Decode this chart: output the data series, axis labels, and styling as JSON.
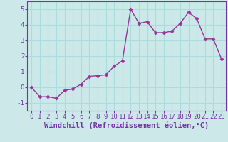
{
  "xlabel": "Windchill (Refroidissement éolien,°C)",
  "x": [
    0,
    1,
    2,
    3,
    4,
    5,
    6,
    7,
    8,
    9,
    10,
    11,
    12,
    13,
    14,
    15,
    16,
    17,
    18,
    19,
    20,
    21,
    22,
    23
  ],
  "y": [
    0.0,
    -0.6,
    -0.6,
    -0.7,
    -0.2,
    -0.1,
    0.2,
    0.7,
    0.75,
    0.8,
    1.35,
    1.7,
    5.0,
    4.1,
    4.2,
    3.5,
    3.5,
    3.6,
    4.1,
    4.8,
    4.4,
    3.1,
    3.1,
    1.8
  ],
  "line_color": "#993399",
  "marker": "D",
  "marker_size": 2.5,
  "line_width": 1.0,
  "ylim": [
    -1.5,
    5.5
  ],
  "xlim": [
    -0.5,
    23.5
  ],
  "yticks": [
    -1,
    0,
    1,
    2,
    3,
    4,
    5
  ],
  "xticks": [
    0,
    1,
    2,
    3,
    4,
    5,
    6,
    7,
    8,
    9,
    10,
    11,
    12,
    13,
    14,
    15,
    16,
    17,
    18,
    19,
    20,
    21,
    22,
    23
  ],
  "bg_color": "#cce8e8",
  "grid_color": "#aadddd",
  "tick_label_size": 6.5,
  "xlabel_size": 7.5,
  "tick_color": "#7733aa",
  "label_color": "#7733aa",
  "spine_color": "#7733aa"
}
